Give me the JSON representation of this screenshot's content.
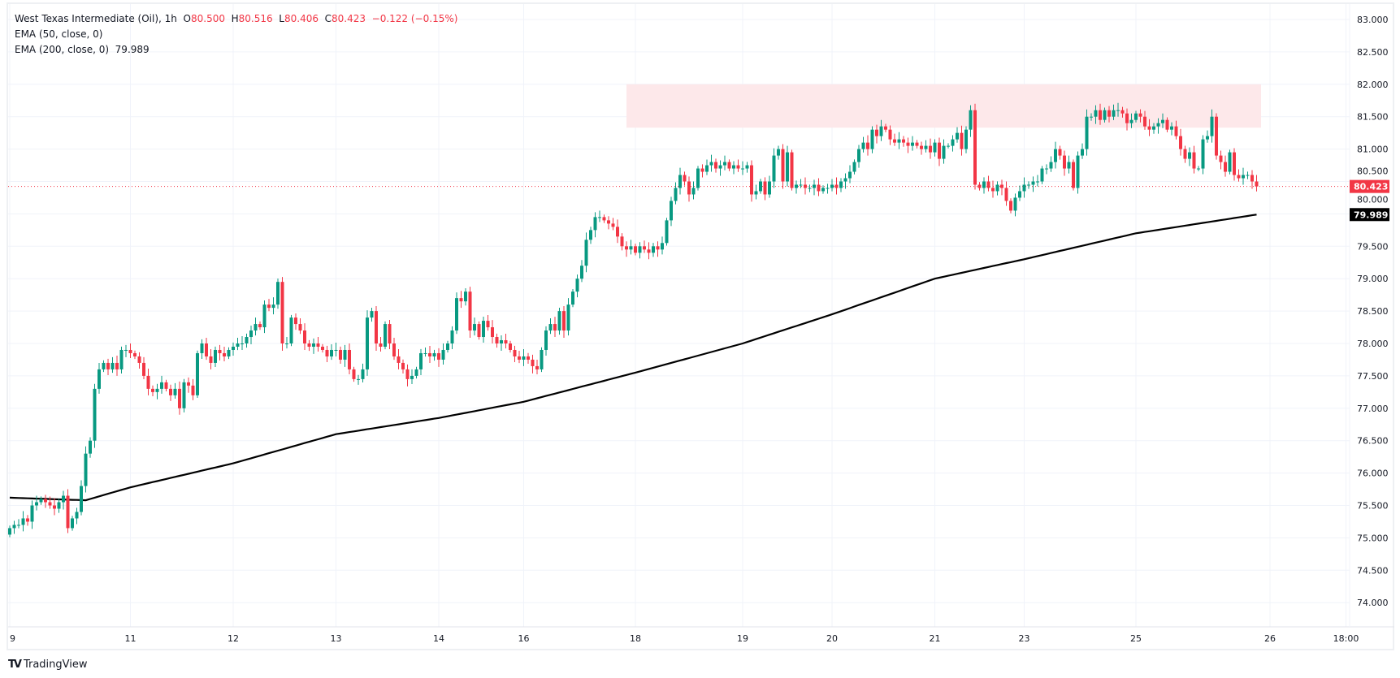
{
  "header": {
    "symbol": "West Texas Intermediate (Oil), 1h",
    "o_label": "O",
    "o": "80.500",
    "h_label": "H",
    "h": "80.516",
    "l_label": "L",
    "l": "80.406",
    "c_label": "C",
    "c": "80.423",
    "change": "−0.122 (−0.15%)",
    "ema50": "EMA (50, close, 0)",
    "ema200": "EMA (200, close, 0)",
    "ema200_value": "79.989"
  },
  "branding": {
    "logo_text": "TradingView"
  },
  "colors": {
    "up": "#089981",
    "down": "#f23645",
    "ema": "#000000",
    "zone": "#fde8ea"
  },
  "chart_data": {
    "type": "candlestick",
    "title": "West Texas Intermediate (Oil), 1h",
    "ylim": [
      73.6,
      83.2
    ],
    "y_ticks": [
      "74.000",
      "74.500",
      "75.000",
      "75.500",
      "76.000",
      "76.500",
      "77.000",
      "77.500",
      "78.000",
      "78.500",
      "79.000",
      "79.500",
      "80.000",
      "80.500",
      "81.000",
      "81.500",
      "82.000",
      "82.500",
      "83.000"
    ],
    "x_ticks": [
      {
        "label": "9",
        "bar": 0
      },
      {
        "label": "11",
        "bar": 27
      },
      {
        "label": "12",
        "bar": 50
      },
      {
        "label": "13",
        "bar": 73
      },
      {
        "label": "14",
        "bar": 96
      },
      {
        "label": "16",
        "bar": 115
      },
      {
        "label": "18",
        "bar": 140
      },
      {
        "label": "19",
        "bar": 164
      },
      {
        "label": "20",
        "bar": 184
      },
      {
        "label": "21",
        "bar": 207
      },
      {
        "label": "23",
        "bar": 227
      },
      {
        "label": "25",
        "bar": 252
      },
      {
        "label": "26",
        "bar": 282
      },
      {
        "label": "18:00",
        "bar": 299
      }
    ],
    "first_open": 75.05,
    "closes": [
      75.15,
      75.2,
      75.2,
      75.3,
      75.25,
      75.5,
      75.55,
      75.6,
      75.55,
      75.5,
      75.45,
      75.55,
      75.65,
      75.15,
      75.3,
      75.4,
      75.8,
      76.3,
      76.5,
      77.3,
      77.6,
      77.7,
      77.6,
      77.7,
      77.6,
      77.9,
      77.9,
      77.85,
      77.8,
      77.7,
      77.5,
      77.3,
      77.25,
      77.3,
      77.4,
      77.3,
      77.2,
      77.3,
      77.0,
      77.4,
      77.35,
      77.2,
      77.85,
      78.0,
      77.8,
      77.7,
      77.9,
      77.85,
      77.8,
      77.9,
      77.95,
      78.0,
      78.0,
      78.1,
      78.2,
      78.3,
      78.25,
      78.6,
      78.55,
      78.6,
      78.95,
      78.0,
      78.0,
      78.4,
      78.3,
      78.2,
      78.0,
      77.95,
      78.0,
      77.95,
      77.9,
      77.8,
      77.9,
      77.9,
      77.75,
      77.9,
      77.6,
      77.45,
      77.45,
      77.6,
      78.4,
      78.5,
      78.0,
      77.95,
      78.3,
      78.0,
      77.8,
      77.7,
      77.6,
      77.45,
      77.5,
      77.6,
      77.85,
      77.85,
      77.8,
      77.85,
      77.75,
      77.9,
      78.0,
      78.2,
      78.7,
      78.65,
      78.8,
      78.2,
      78.3,
      78.1,
      78.35,
      78.25,
      78.1,
      78.0,
      78.05,
      78.0,
      77.9,
      77.8,
      77.75,
      77.8,
      77.75,
      77.65,
      77.6,
      77.9,
      78.2,
      78.3,
      78.2,
      78.5,
      78.2,
      78.6,
      78.8,
      79.0,
      79.2,
      79.6,
      79.75,
      79.95,
      79.95,
      79.9,
      79.85,
      79.8,
      79.65,
      79.5,
      79.45,
      79.5,
      79.4,
      79.5,
      79.45,
      79.4,
      79.5,
      79.45,
      79.55,
      79.9,
      80.2,
      80.4,
      80.6,
      80.5,
      80.3,
      80.4,
      80.7,
      80.65,
      80.75,
      80.8,
      80.7,
      80.75,
      80.8,
      80.7,
      80.75,
      80.7,
      80.7,
      80.75,
      80.3,
      80.35,
      80.5,
      80.3,
      80.5,
      80.9,
      81.0,
      80.5,
      80.95,
      80.4,
      80.45,
      80.45,
      80.4,
      80.4,
      80.45,
      80.35,
      80.4,
      80.4,
      80.45,
      80.4,
      80.5,
      80.55,
      80.65,
      80.8,
      81.0,
      81.1,
      81.0,
      81.3,
      81.2,
      81.35,
      81.3,
      81.15,
      81.1,
      81.15,
      81.1,
      81.05,
      81.1,
      81.05,
      81.0,
      81.05,
      80.95,
      81.1,
      80.85,
      81.05,
      81.05,
      81.15,
      81.25,
      81.0,
      81.3,
      81.6,
      80.45,
      80.4,
      80.5,
      80.4,
      80.35,
      80.45,
      80.4,
      80.2,
      80.05,
      80.25,
      80.35,
      80.45,
      80.45,
      80.5,
      80.5,
      80.7,
      80.7,
      80.8,
      81.0,
      80.9,
      80.7,
      80.8,
      80.4,
      80.9,
      81.0,
      81.5,
      81.5,
      81.6,
      81.45,
      81.6,
      81.5,
      81.6,
      81.6,
      81.55,
      81.4,
      81.45,
      81.55,
      81.5,
      81.35,
      81.3,
      81.35,
      81.4,
      81.45,
      81.3,
      81.35,
      81.2,
      81.0,
      80.85,
      80.95,
      80.7,
      80.7,
      81.15,
      81.2,
      81.5,
      80.9,
      80.8,
      80.65,
      80.95,
      80.6,
      80.55,
      80.6,
      80.6,
      80.5,
      80.423
    ],
    "ema200": [
      {
        "bar": 0,
        "value": 75.62
      },
      {
        "bar": 17,
        "value": 75.58
      },
      {
        "bar": 27,
        "value": 75.78
      },
      {
        "bar": 50,
        "value": 76.15
      },
      {
        "bar": 73,
        "value": 76.6
      },
      {
        "bar": 96,
        "value": 76.85
      },
      {
        "bar": 115,
        "value": 77.1
      },
      {
        "bar": 140,
        "value": 77.55
      },
      {
        "bar": 164,
        "value": 78.0
      },
      {
        "bar": 184,
        "value": 78.45
      },
      {
        "bar": 207,
        "value": 79.0
      },
      {
        "bar": 227,
        "value": 79.3
      },
      {
        "bar": 252,
        "value": 79.7
      },
      {
        "bar": 279,
        "value": 79.989
      }
    ],
    "resistance_zone": {
      "from_bar": 138,
      "to_bar": 280,
      "low": 81.33,
      "high": 82.0
    },
    "last_price": 80.423,
    "last_price_label": "80.423",
    "ema200_label": "79.989"
  }
}
